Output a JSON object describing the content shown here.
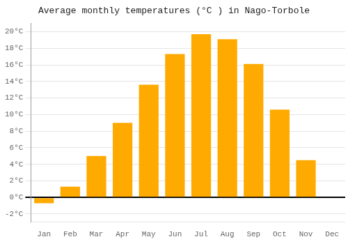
{
  "chart_data": {
    "type": "bar",
    "title": "Average monthly temperatures (°C ) in Nago-Torbole",
    "categories": [
      "Jan",
      "Feb",
      "Mar",
      "Apr",
      "May",
      "Jun",
      "Jul",
      "Aug",
      "Sep",
      "Oct",
      "Nov",
      "Dec"
    ],
    "values": [
      -0.7,
      1.3,
      5.0,
      9.0,
      13.6,
      17.3,
      19.7,
      19.1,
      16.1,
      10.6,
      4.5,
      0.0
    ],
    "color": "#FFAA00",
    "ylim": [
      -3,
      21
    ],
    "yticks": [
      {
        "value": -2,
        "label": "-2°C"
      },
      {
        "value": 0,
        "label": "0°C"
      },
      {
        "value": 2,
        "label": "2°C"
      },
      {
        "value": 4,
        "label": "4°C"
      },
      {
        "value": 6,
        "label": "6°C"
      },
      {
        "value": 8,
        "label": "8°C"
      },
      {
        "value": 10,
        "label": "10°C"
      },
      {
        "value": 12,
        "label": "12°C"
      },
      {
        "value": 14,
        "label": "14°C"
      },
      {
        "value": 16,
        "label": "16°C"
      },
      {
        "value": 18,
        "label": "18°C"
      },
      {
        "value": 20,
        "label": "20°C"
      }
    ],
    "grid": true
  }
}
